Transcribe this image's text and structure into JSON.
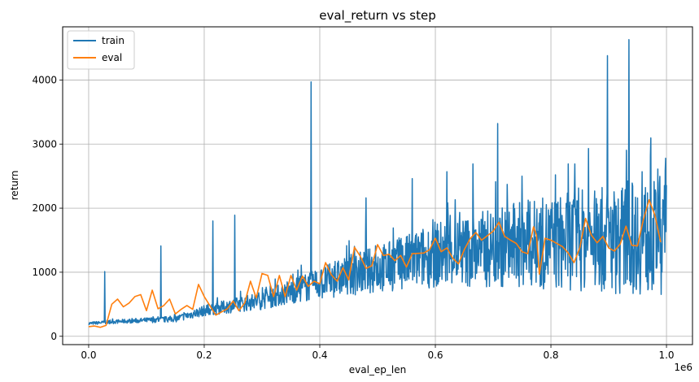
{
  "chart_data": {
    "type": "line",
    "title": "eval_return vs step",
    "xlabel": "eval_ep_len",
    "ylabel": "return",
    "x_offset_label": "1e6",
    "xlim": [
      -45000,
      1045000
    ],
    "ylim": [
      -130,
      4830
    ],
    "x_ticks": [
      0,
      200000,
      400000,
      600000,
      800000,
      1000000
    ],
    "x_tick_labels": [
      "0.0",
      "0.2",
      "0.4",
      "0.6",
      "0.8",
      "1.0"
    ],
    "y_ticks": [
      0,
      1000,
      2000,
      3000,
      4000
    ],
    "y_tick_labels": [
      "0",
      "1000",
      "2000",
      "3000",
      "4000"
    ],
    "grid": true,
    "legend": "top-left",
    "series": [
      {
        "name": "train",
        "color": "#1f77b4",
        "trend": [
          [
            0,
            200
          ],
          [
            50000,
            230
          ],
          [
            100000,
            250
          ],
          [
            150000,
            270
          ],
          [
            200000,
            400
          ],
          [
            250000,
            480
          ],
          [
            300000,
            560
          ],
          [
            350000,
            700
          ],
          [
            400000,
            820
          ],
          [
            450000,
            950
          ],
          [
            500000,
            1050
          ],
          [
            550000,
            1150
          ],
          [
            600000,
            1280
          ],
          [
            650000,
            1320
          ],
          [
            700000,
            1380
          ],
          [
            750000,
            1430
          ],
          [
            800000,
            1450
          ],
          [
            850000,
            1500
          ],
          [
            900000,
            1500
          ],
          [
            950000,
            1550
          ],
          [
            1000000,
            1500
          ]
        ],
        "spikes": [
          [
            28000,
            1010
          ],
          [
            125000,
            1410
          ],
          [
            215000,
            1800
          ],
          [
            253000,
            1890
          ],
          [
            385000,
            3970
          ],
          [
            480000,
            2160
          ],
          [
            560000,
            2460
          ],
          [
            620000,
            2570
          ],
          [
            665000,
            2690
          ],
          [
            708000,
            3320
          ],
          [
            750000,
            2500
          ],
          [
            808000,
            2520
          ],
          [
            830000,
            2690
          ],
          [
            865000,
            2930
          ],
          [
            898000,
            4380
          ],
          [
            935000,
            4630
          ],
          [
            958000,
            2570
          ],
          [
            985000,
            2610
          ],
          [
            998000,
            2590
          ]
        ]
      },
      {
        "name": "eval",
        "color": "#ff7f0e",
        "x": [
          0,
          10000,
          20000,
          30000,
          40000,
          50000,
          60000,
          70000,
          80000,
          90000,
          100000,
          110000,
          120000,
          130000,
          140000,
          150000,
          160000,
          170000,
          180000,
          190000,
          200000,
          220000,
          240000,
          250000,
          260000,
          270000,
          280000,
          290000,
          300000,
          310000,
          320000,
          330000,
          340000,
          350000,
          360000,
          370000,
          380000,
          390000,
          400000,
          410000,
          420000,
          430000,
          440000,
          450000,
          460000,
          470000,
          480000,
          490000,
          500000,
          510000,
          520000,
          530000,
          540000,
          550000,
          560000,
          580000,
          590000,
          600000,
          610000,
          620000,
          630000,
          640000,
          650000,
          660000,
          670000,
          680000,
          690000,
          700000,
          710000,
          720000,
          730000,
          740000,
          750000,
          760000,
          770000,
          775000,
          780000,
          790000,
          800000,
          810000,
          820000,
          830000,
          840000,
          850000,
          860000,
          870000,
          880000,
          890000,
          900000,
          910000,
          920000,
          930000,
          940000,
          950000,
          960000,
          970000,
          980000,
          990000
        ],
        "y": [
          150,
          160,
          140,
          170,
          500,
          580,
          460,
          520,
          620,
          650,
          400,
          720,
          430,
          480,
          580,
          350,
          420,
          480,
          420,
          810,
          620,
          330,
          430,
          550,
          400,
          520,
          860,
          600,
          980,
          950,
          620,
          950,
          620,
          950,
          720,
          940,
          780,
          860,
          820,
          1150,
          960,
          860,
          1070,
          880,
          1390,
          1250,
          1060,
          1100,
          1430,
          1260,
          1280,
          1180,
          1260,
          1080,
          1290,
          1300,
          1350,
          1530,
          1320,
          1380,
          1220,
          1130,
          1350,
          1520,
          1620,
          1500,
          1570,
          1640,
          1780,
          1560,
          1500,
          1450,
          1320,
          1290,
          1710,
          1580,
          970,
          1530,
          1500,
          1450,
          1400,
          1300,
          1150,
          1380,
          1840,
          1580,
          1460,
          1560,
          1380,
          1330,
          1440,
          1720,
          1420,
          1410,
          1820,
          2130,
          1890,
          1470
        ]
      }
    ]
  }
}
